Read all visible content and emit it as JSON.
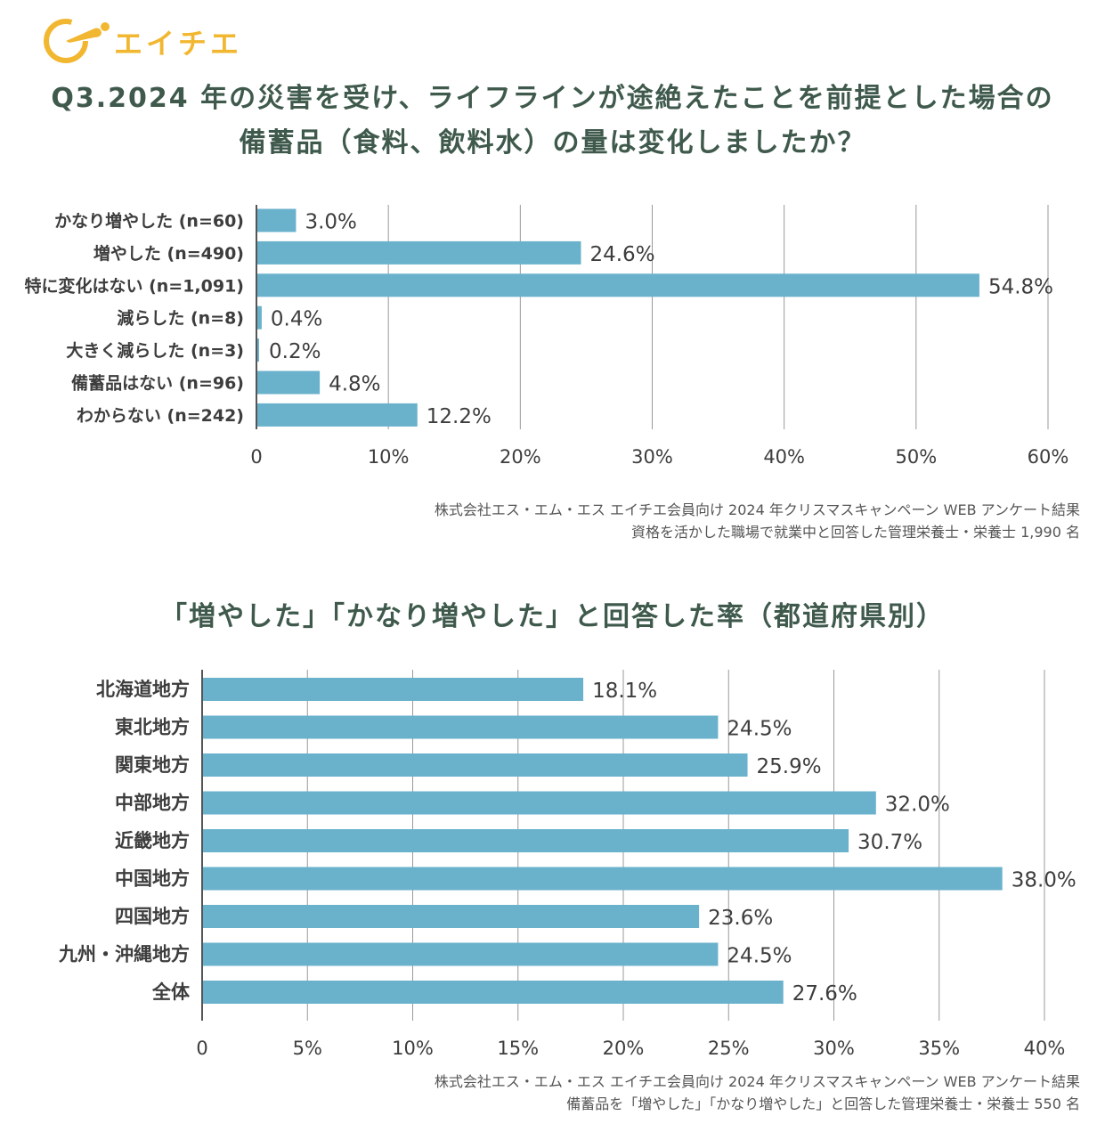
{
  "header": {
    "logo_text": "エイチエ",
    "title_line1": "Q3.2024 年の災害を受け、ライフラインが途絶えたことを前提とした場合の",
    "title_line2": "備蓄品（食料、飲料水）の量は変化しましたか？",
    "title2": "「増やした」「かなり増やした」と回答した率（都道府県別）"
  },
  "source1": {
    "line1": "株式会社エス・エム・エス エイチエ会員向け 2024 年クリスマスキャンペーン WEB アンケート結果",
    "line2": "資格を活かした職場で就業中と回答した管理栄養士・栄養士 1,990 名"
  },
  "source2": {
    "line1": "株式会社エス・エム・エス エイチエ会員向け 2024 年クリスマスキャンペーン WEB アンケート結果",
    "line2": "備蓄品を「増やした」「かなり増やした」と回答した管理栄養士・栄養士 550 名"
  },
  "colors": {
    "bar": "#6ab2cc",
    "title": "#3f5a4c",
    "logo": "#f2b731",
    "grid": "#999999"
  },
  "chart_data": [
    {
      "type": "bar",
      "orientation": "horizontal",
      "categories": [
        "かなり増やした (n=60)",
        "増やした (n=490)",
        "特に変化はない (n=1,091)",
        "減らした (n=8)",
        "大きく減らした (n=3)",
        "備蓄品はない (n=96)",
        "わからない (n=242)"
      ],
      "values": [
        3.0,
        24.6,
        54.8,
        0.4,
        0.2,
        4.8,
        12.2
      ],
      "value_labels": [
        "3.0%",
        "24.6%",
        "54.8%",
        "0.4%",
        "0.2%",
        "4.8%",
        "12.2%"
      ],
      "xlim": [
        0,
        60
      ],
      "ticks": [
        0,
        10,
        20,
        30,
        40,
        50,
        60
      ],
      "tick_labels": [
        "0",
        "10%",
        "20%",
        "30%",
        "40%",
        "50%",
        "60%"
      ],
      "grid": true
    },
    {
      "type": "bar",
      "orientation": "horizontal",
      "categories": [
        "北海道地方",
        "東北地方",
        "関東地方",
        "中部地方",
        "近畿地方",
        "中国地方",
        "四国地方",
        "九州・沖縄地方",
        "全体"
      ],
      "values": [
        18.1,
        24.5,
        25.9,
        32.0,
        30.7,
        38.0,
        23.6,
        24.5,
        27.6
      ],
      "value_labels": [
        "18.1%",
        "24.5%",
        "25.9%",
        "32.0%",
        "30.7%",
        "38.0%",
        "23.6%",
        "24.5%",
        "27.6%"
      ],
      "xlim": [
        0,
        40
      ],
      "ticks": [
        0,
        5,
        10,
        15,
        20,
        25,
        30,
        35,
        40
      ],
      "tick_labels": [
        "0",
        "5%",
        "10%",
        "15%",
        "20%",
        "25%",
        "30%",
        "35%",
        "40%"
      ],
      "grid": true
    }
  ]
}
